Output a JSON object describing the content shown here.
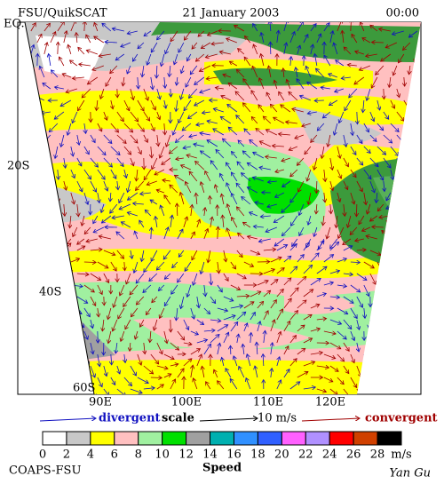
{
  "header": {
    "left": "FSU/QuikSCAT",
    "center": "21 January 2003",
    "right": "00:00"
  },
  "map": {
    "lat_labels": [
      "EQ.",
      "20S",
      "40S",
      "60S"
    ],
    "lon_labels": [
      "90E",
      "100E",
      "110E",
      "120E"
    ]
  },
  "scale_legend": {
    "divergent": "divergent",
    "scale": "scale",
    "reference": "10 m/s",
    "convergent": "convergent"
  },
  "colorbar": {
    "labels": [
      0,
      2,
      4,
      6,
      8,
      10,
      12,
      14,
      16,
      18,
      20,
      22,
      24,
      26,
      28
    ],
    "unit": "m/s",
    "title": "Speed",
    "colors": [
      "#ffffff",
      "#c8c8c8",
      "#ffff00",
      "#ffc0c0",
      "#a0f0a0",
      "#00e000",
      "#a0a0a0",
      "#00b0b0",
      "#3090ff",
      "#3060ff",
      "#ff60ff",
      "#b090ff",
      "#ff0000",
      "#d04000",
      "#000000"
    ]
  },
  "footer": {
    "left": "COAPS-FSU",
    "right": "Yan Gu"
  }
}
